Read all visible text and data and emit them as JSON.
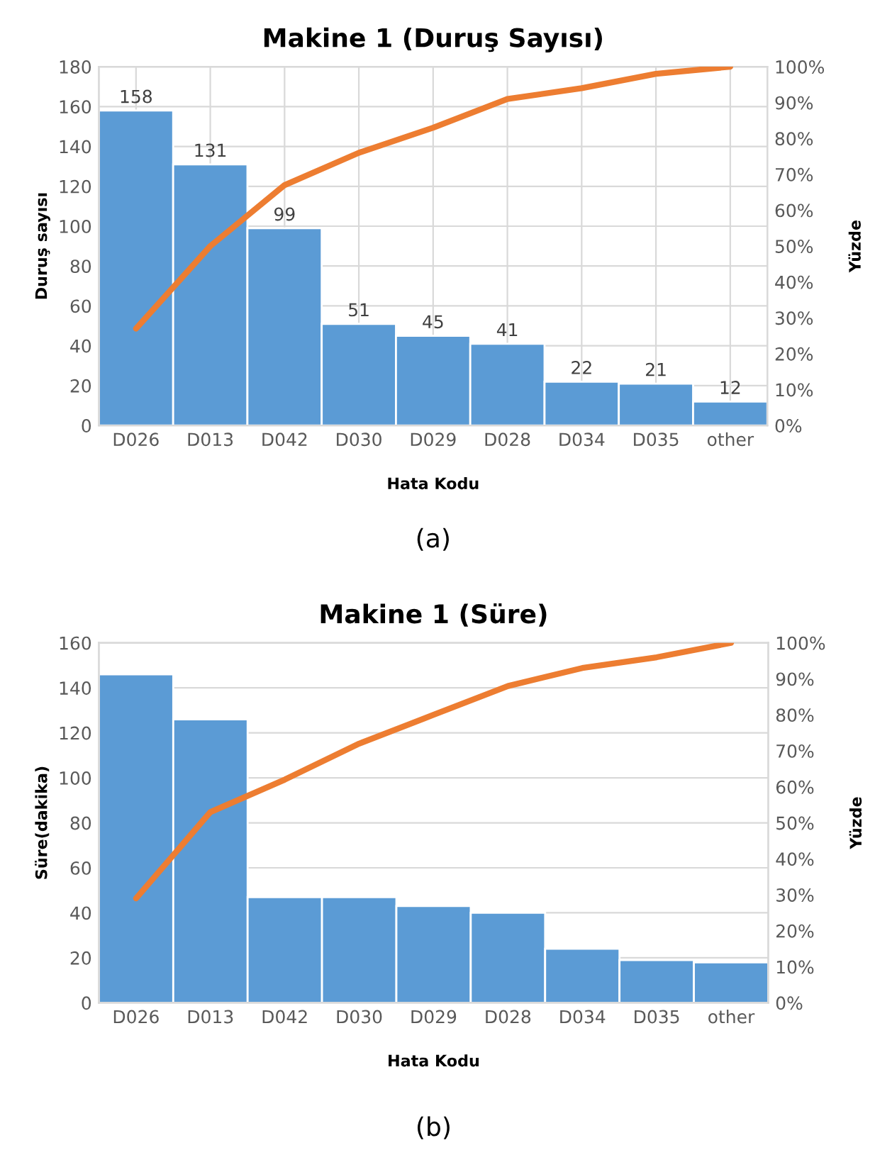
{
  "chart_data": [
    {
      "type": "bar",
      "title": "Makine 1 (Duruş Sayısı)",
      "xlabel": "Hata Kodu",
      "ylabel": "Duruş sayısı",
      "y2label": "Yüzde",
      "annotations": [
        "(a)"
      ],
      "categories": [
        "D026",
        "D013",
        "D042",
        "D030",
        "D029",
        "D028",
        "D034",
        "D035",
        "other"
      ],
      "series": [
        {
          "color": "#5b9bd5",
          "values": [
            158,
            131,
            99,
            51,
            45,
            41,
            22,
            21,
            12
          ],
          "value_labels": [
            "158",
            "131",
            "99",
            "51",
            "45",
            "41",
            "22",
            "21",
            "12"
          ]
        },
        {
          "type": "line",
          "axis": "y2",
          "color": "#ed7d31",
          "values": [
            27,
            50,
            67,
            76,
            83,
            91,
            94,
            98,
            100
          ]
        }
      ],
      "ylim": [
        0,
        180
      ],
      "yticks": [
        0,
        20,
        40,
        60,
        80,
        100,
        120,
        140,
        160,
        180
      ],
      "y2lim": [
        0,
        100
      ],
      "y2ticks": [
        {
          "value": 0,
          "label": "0%"
        },
        {
          "value": 10,
          "label": "10%"
        },
        {
          "value": 20,
          "label": "20%"
        },
        {
          "value": 30,
          "label": "30%"
        },
        {
          "value": 40,
          "label": "40%"
        },
        {
          "value": 50,
          "label": "50%"
        },
        {
          "value": 60,
          "label": "60%"
        },
        {
          "value": 70,
          "label": "70%"
        },
        {
          "value": 80,
          "label": "80%"
        },
        {
          "value": 90,
          "label": "90%"
        },
        {
          "value": 100,
          "label": "100%"
        }
      ],
      "grid": true,
      "legend": false
    },
    {
      "type": "bar",
      "title": "Makine 1 (Süre)",
      "xlabel": "Hata Kodu",
      "ylabel": "Süre(dakika)",
      "y2label": "Yüzde",
      "annotations": [
        "(b)"
      ],
      "categories": [
        "D026",
        "D013",
        "D042",
        "D030",
        "D029",
        "D028",
        "D034",
        "D035",
        "other"
      ],
      "series": [
        {
          "color": "#5b9bd5",
          "values": [
            146,
            126,
            47,
            47,
            43,
            40,
            24,
            19,
            18
          ]
        },
        {
          "type": "line",
          "axis": "y2",
          "color": "#ed7d31",
          "values": [
            29,
            53,
            62,
            72,
            80,
            88,
            93,
            96,
            100
          ]
        }
      ],
      "ylim": [
        0,
        160
      ],
      "yticks": [
        0,
        20,
        40,
        60,
        80,
        100,
        120,
        140,
        160
      ],
      "y2lim": [
        0,
        100
      ],
      "y2ticks": [
        {
          "value": 0,
          "label": "0%"
        },
        {
          "value": 10,
          "label": "10%"
        },
        {
          "value": 20,
          "label": "20%"
        },
        {
          "value": 30,
          "label": "30%"
        },
        {
          "value": 40,
          "label": "40%"
        },
        {
          "value": 50,
          "label": "50%"
        },
        {
          "value": 60,
          "label": "60%"
        },
        {
          "value": 70,
          "label": "70%"
        },
        {
          "value": 80,
          "label": "80%"
        },
        {
          "value": 90,
          "label": "90%"
        },
        {
          "value": 100,
          "label": "100%"
        }
      ],
      "grid": "y",
      "legend": false
    }
  ]
}
